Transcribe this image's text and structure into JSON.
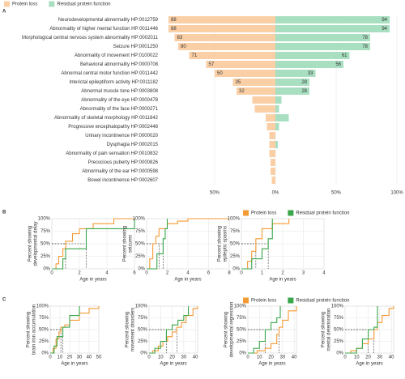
{
  "chart_data": [
    {
      "type": "diverging_bar",
      "panel": "A",
      "legend": "top",
      "categories": [
        "Neurodevelopmental abnormality HP:0012759",
        "Abnormality of higher mental function HP:0011446",
        "Morphological central nervous system abnormality HP:0002011",
        "Seizure HP:0001250",
        "Abnormality of movement HP:0100022",
        "Behavioral abnormality HP:0000708",
        "Abnormal central motor function HP:0011442",
        "Interictal epileptiform activity HP:0011182",
        "Abnormal muscle tone HP:0003808",
        "Abnormality of the eye HP:0000478",
        "Abnormality of the face HP:0000271",
        "Abnormality of skeletal morphology HP:0011842",
        "Progressive encephalopathy HP:0002448",
        "Urinary incontinence HP:0000020",
        "Dysphagia HP:0002015",
        "Abnormality of pain sensation HP:0010832",
        "Precocious puberty HP:0000826",
        "Abnormality of the ear HP:0000598",
        "Bowel incontinence HP:0002607"
      ],
      "series": [
        {
          "name": "Protein loss",
          "color": "#fbcfa6",
          "values": [
            88,
            88,
            83,
            80,
            71,
            57,
            50,
            35,
            32,
            19,
            17,
            8,
            7,
            5,
            5,
            5,
            4,
            4,
            3
          ],
          "value_labels": [
            "88",
            "88",
            "83",
            "80",
            "71",
            "57",
            "50",
            "35",
            "32",
            null,
            null,
            null,
            null,
            null,
            null,
            null,
            null,
            null,
            null
          ]
        },
        {
          "name": "Residual protein function",
          "color": "#a9dfc1",
          "values": [
            94,
            94,
            78,
            78,
            61,
            56,
            33,
            28,
            28,
            5,
            3,
            11,
            3,
            0,
            2,
            0,
            0,
            0,
            0
          ],
          "value_labels": [
            "94",
            "94",
            "78",
            "78",
            "61",
            "56",
            "33",
            "28",
            "28",
            null,
            null,
            null,
            null,
            null,
            null,
            null,
            null,
            null,
            null
          ]
        }
      ],
      "xlim": [
        -100,
        100
      ],
      "xticks": [
        {
          "value": -50,
          "label": "50%"
        },
        {
          "value": 0,
          "label": "0%"
        },
        {
          "value": 50,
          "label": "50%"
        },
        {
          "value": 100,
          "label": "100%"
        }
      ],
      "grid": true
    },
    {
      "type": "step",
      "panel": "B",
      "ylabel": [
        "Percent showing",
        "developmental delay"
      ],
      "xlabel": "Age in years",
      "xlim": [
        0,
        6
      ],
      "xticks": [
        0,
        2,
        4,
        6
      ],
      "ylim": [
        0,
        100
      ],
      "yticks": [
        {
          "value": 0,
          "label": "0%"
        },
        {
          "value": 25,
          "label": "25%"
        },
        {
          "value": 50,
          "label": "50%"
        },
        {
          "value": 75,
          "label": "75%"
        },
        {
          "value": 100,
          "label": "100%"
        }
      ],
      "grid": true,
      "series": [
        {
          "name": "Protein loss",
          "color": "#f39a35",
          "x": [
            0,
            0.3,
            0.5,
            0.8,
            1,
            1.5,
            2,
            3,
            4.5,
            6
          ],
          "values": [
            0,
            10,
            25,
            40,
            55,
            70,
            80,
            90,
            100,
            100
          ],
          "median": 1
        },
        {
          "name": "Residual protein function",
          "color": "#3aa64a",
          "x": [
            0,
            0.8,
            1,
            2.5,
            6
          ],
          "values": [
            0,
            20,
            40,
            80,
            100
          ],
          "median": 2.5
        }
      ]
    },
    {
      "type": "step",
      "legend": "top",
      "ylabel": [
        "Percent showing",
        "seizures"
      ],
      "xlabel": "Age in years",
      "xlim": [
        0,
        8
      ],
      "xticks": [
        0,
        2,
        4,
        6,
        8
      ],
      "ylim": [
        0,
        100
      ],
      "yticks": [
        {
          "value": 0,
          "label": "0%"
        },
        {
          "value": 25,
          "label": "25%"
        },
        {
          "value": 50,
          "label": "50%"
        },
        {
          "value": 75,
          "label": "75%"
        },
        {
          "value": 100,
          "label": "100%"
        }
      ],
      "grid": true,
      "series": [
        {
          "name": "Protein loss",
          "color": "#f39a35",
          "x": [
            0,
            0.3,
            0.6,
            0.9,
            1.2,
            2,
            3,
            4,
            8
          ],
          "values": [
            0,
            20,
            50,
            65,
            80,
            90,
            95,
            100,
            100
          ],
          "median": 1.2
        },
        {
          "name": "Residual protein function",
          "color": "#3aa64a",
          "x": [
            0,
            1,
            1.6,
            1.8,
            2
          ],
          "values": [
            0,
            30,
            60,
            80,
            100
          ],
          "median": 1.6
        }
      ]
    },
    {
      "type": "step",
      "ylabel": [
        "Percent showing",
        "epileptic spasms"
      ],
      "xlabel": "Age in years",
      "xlim": [
        0,
        4
      ],
      "xticks": [
        0,
        1,
        2,
        3,
        4
      ],
      "ylim": [
        0,
        100
      ],
      "yticks": [
        {
          "value": 0,
          "label": "0%"
        },
        {
          "value": 25,
          "label": "25%"
        },
        {
          "value": 50,
          "label": "50%"
        },
        {
          "value": 75,
          "label": "75%"
        },
        {
          "value": 100,
          "label": "100%"
        }
      ],
      "grid": true,
      "series": [
        {
          "name": "Protein loss",
          "color": "#f39a35",
          "x": [
            0,
            0.3,
            0.5,
            0.7,
            1,
            1.5,
            2.3
          ],
          "values": [
            0,
            15,
            35,
            60,
            80,
            90,
            100
          ],
          "median": 0.7
        },
        {
          "name": "Residual protein function",
          "color": "#3aa64a",
          "x": [
            0,
            0.5,
            1,
            1.3,
            1.5
          ],
          "values": [
            0,
            20,
            40,
            60,
            100
          ],
          "median": 1.3
        }
      ]
    },
    {
      "type": "step",
      "panel": "C",
      "ylabel": [
        "Percent showing",
        "brain iron accumulation"
      ],
      "xlabel": "Age in years",
      "xlim": [
        0,
        50
      ],
      "xticks": [
        0,
        10,
        20,
        30,
        40,
        50
      ],
      "ylim": [
        0,
        100
      ],
      "yticks": [
        {
          "value": 0,
          "label": "0%"
        },
        {
          "value": 25,
          "label": "25%"
        },
        {
          "value": 50,
          "label": "50%"
        },
        {
          "value": 75,
          "label": "75%"
        },
        {
          "value": 100,
          "label": "100%"
        }
      ],
      "grid": true,
      "series": [
        {
          "name": "Protein loss",
          "color": "#f39a35",
          "x": [
            0,
            3,
            6,
            9,
            11,
            15,
            20,
            30,
            40,
            50
          ],
          "values": [
            0,
            10,
            30,
            45,
            55,
            60,
            70,
            85,
            95,
            100
          ],
          "median": 11
        },
        {
          "name": "Residual protein function",
          "color": "#3aa64a",
          "x": [
            0,
            4,
            7,
            13,
            20,
            30
          ],
          "values": [
            0,
            15,
            35,
            55,
            80,
            100
          ],
          "median": 13
        }
      ]
    },
    {
      "type": "step",
      "legend": "top",
      "ylabel": [
        "Percent showing",
        "movement disorders"
      ],
      "xlabel": "Age in years",
      "xlim": [
        0,
        42
      ],
      "xticks": [
        0,
        10,
        20,
        30,
        40
      ],
      "ylim": [
        0,
        100
      ],
      "yticks": [
        {
          "value": 0,
          "label": "0%"
        },
        {
          "value": 25,
          "label": "25%"
        },
        {
          "value": 50,
          "label": "50%"
        },
        {
          "value": 75,
          "label": "75%"
        },
        {
          "value": 100,
          "label": "100%"
        }
      ],
      "grid": true,
      "series": [
        {
          "name": "Protein loss",
          "color": "#f39a35",
          "x": [
            0,
            3,
            8,
            12,
            16,
            20,
            24,
            28,
            32,
            38,
            42
          ],
          "values": [
            0,
            5,
            15,
            25,
            35,
            45,
            55,
            65,
            80,
            95,
            100
          ],
          "median": 24
        },
        {
          "name": "Residual protein function",
          "color": "#3aa64a",
          "x": [
            0,
            5,
            10,
            15,
            20,
            25,
            30,
            34
          ],
          "values": [
            0,
            10,
            25,
            50,
            60,
            70,
            80,
            100
          ],
          "median": 15
        }
      ]
    },
    {
      "type": "step",
      "ylabel": [
        "Percent showing",
        "developmental regression"
      ],
      "xlabel": "Age in years",
      "xlim": [
        0,
        42
      ],
      "xticks": [
        0,
        10,
        20,
        30,
        40
      ],
      "ylim": [
        0,
        100
      ],
      "yticks": [
        {
          "value": 0,
          "label": "0%"
        },
        {
          "value": 25,
          "label": "25%"
        },
        {
          "value": 50,
          "label": "50%"
        },
        {
          "value": 75,
          "label": "75%"
        },
        {
          "value": 100,
          "label": "100%"
        }
      ],
      "grid": true,
      "series": [
        {
          "name": "Protein loss",
          "color": "#f39a35",
          "x": [
            0,
            8,
            15,
            20,
            25,
            27,
            30,
            35,
            42
          ],
          "values": [
            0,
            5,
            10,
            20,
            40,
            55,
            70,
            90,
            100
          ],
          "median": 27
        },
        {
          "name": "Residual protein function",
          "color": "#3aa64a",
          "x": [
            0,
            5,
            10,
            15,
            20,
            25,
            28
          ],
          "values": [
            0,
            10,
            25,
            50,
            65,
            75,
            100
          ],
          "median": 15
        }
      ]
    },
    {
      "type": "step",
      "ylabel": [
        "Percent showing",
        "mental deterioration"
      ],
      "xlabel": "Age in years",
      "xlim": [
        0,
        42
      ],
      "xticks": [
        0,
        10,
        20,
        30,
        40
      ],
      "ylim": [
        0,
        100
      ],
      "yticks": [
        {
          "value": 0,
          "label": "0%"
        },
        {
          "value": 25,
          "label": "25%"
        },
        {
          "value": 50,
          "label": "50%"
        },
        {
          "value": 75,
          "label": "75%"
        },
        {
          "value": 100,
          "label": "100%"
        }
      ],
      "grid": true,
      "series": [
        {
          "name": "Protein loss",
          "color": "#f39a35",
          "x": [
            0,
            5,
            10,
            15,
            20,
            25,
            28,
            32,
            38,
            42
          ],
          "values": [
            0,
            5,
            10,
            20,
            30,
            50,
            65,
            80,
            95,
            100
          ],
          "median": 25
        },
        {
          "name": "Residual protein function",
          "color": "#3aa64a",
          "x": [
            0,
            10,
            15,
            20,
            25,
            28
          ],
          "values": [
            0,
            10,
            30,
            50,
            55,
            100
          ],
          "median": 20
        }
      ]
    }
  ]
}
